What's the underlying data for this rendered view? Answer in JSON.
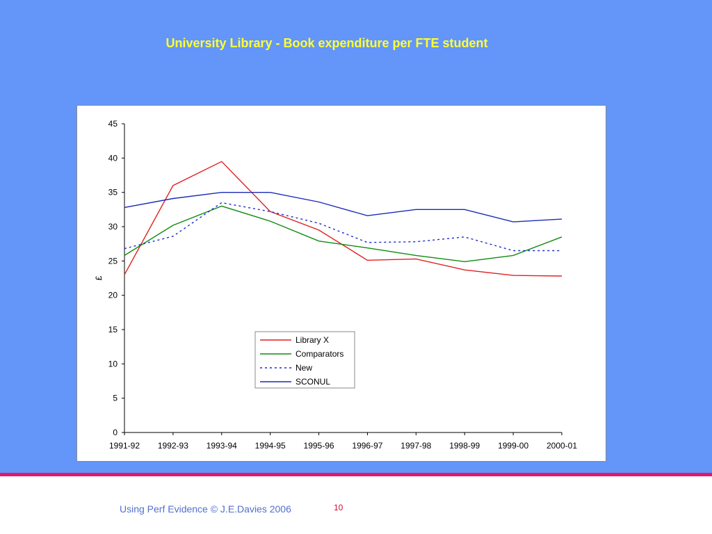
{
  "slide": {
    "title": "University Library - Book expenditure per FTE student",
    "footer_left": "Using Perf Evidence © J.E.Davies 2006",
    "page_number": "10"
  },
  "colors": {
    "background": "#6495f8",
    "title": "#ffff33",
    "rule": "#e0196e",
    "footer_text": "#5070d0",
    "page_number": "#cc1133"
  },
  "chart_data": {
    "type": "line",
    "ylabel": "£",
    "xlabel": "",
    "ylim": [
      0,
      45
    ],
    "yticks": [
      "0",
      "5",
      "10",
      "15",
      "20",
      "25",
      "30",
      "35",
      "40",
      "45"
    ],
    "categories": [
      "1991-92",
      "1992-93",
      "1993-94",
      "1994-95",
      "1995-96",
      "1996-97",
      "1997-98",
      "1998-99",
      "1999-00",
      "2000-01"
    ],
    "grid": false,
    "legend_position": "bottom-center",
    "series": [
      {
        "name": "Library X",
        "color": "#e02020",
        "dash": "solid",
        "values": [
          23.0,
          36.0,
          39.5,
          32.2,
          29.5,
          25.1,
          25.3,
          23.7,
          22.9,
          22.8
        ]
      },
      {
        "name": "Comparators",
        "color": "#108a10",
        "dash": "solid",
        "values": [
          25.8,
          30.2,
          33.0,
          30.8,
          27.9,
          26.9,
          25.8,
          24.9,
          25.8,
          28.5
        ]
      },
      {
        "name": "New",
        "color": "#1a2ad0",
        "dash": "dotted",
        "values": [
          26.8,
          28.6,
          33.5,
          32.2,
          30.5,
          27.7,
          27.8,
          28.5,
          26.5,
          26.5
        ]
      },
      {
        "name": "SCONUL",
        "color": "#1a2ab8",
        "dash": "solid",
        "values": [
          32.8,
          34.1,
          35.0,
          35.0,
          33.6,
          31.6,
          32.5,
          32.5,
          30.7,
          31.1
        ]
      }
    ]
  }
}
